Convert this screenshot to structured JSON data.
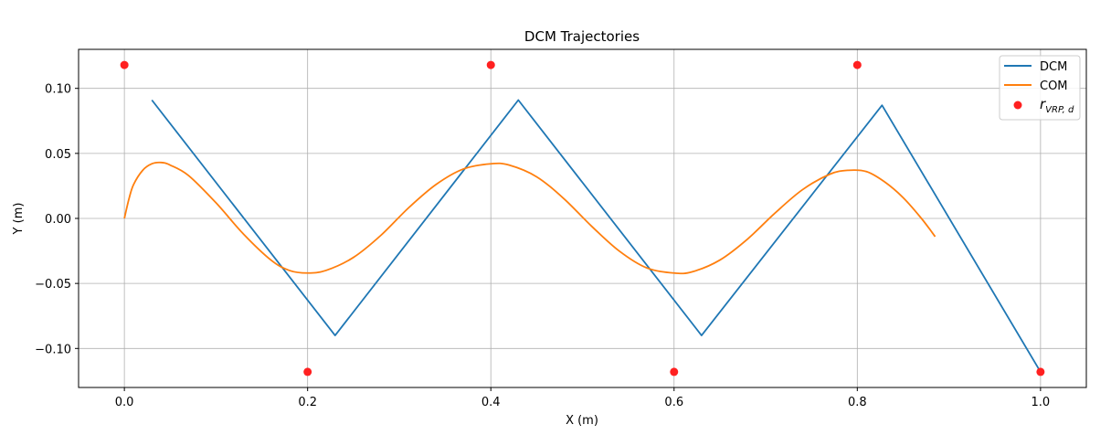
{
  "chart_data": {
    "type": "line",
    "title": "DCM Trajectories",
    "xlabel": "X (m)",
    "ylabel": "Y (m)",
    "xlim": [
      -0.05,
      1.05
    ],
    "ylim": [
      -0.13,
      0.13
    ],
    "xticks": [
      0.0,
      0.2,
      0.4,
      0.6,
      0.8,
      1.0
    ],
    "xtick_labels": [
      "0.0",
      "0.2",
      "0.4",
      "0.6",
      "0.8",
      "1.0"
    ],
    "yticks": [
      -0.1,
      -0.05,
      0.0,
      0.05,
      0.1
    ],
    "ytick_labels": [
      "−0.10",
      "−0.05",
      "0.00",
      "0.05",
      "0.10"
    ],
    "grid": true,
    "legend_position": "top-right",
    "series": [
      {
        "name": "DCM",
        "kind": "line",
        "color": "#1f77b4",
        "x": [
          0.03,
          0.23,
          0.43,
          0.63,
          0.827,
          1.0
        ],
        "y": [
          0.091,
          -0.09,
          0.091,
          -0.09,
          0.087,
          -0.118
        ]
      },
      {
        "name": "COM",
        "kind": "line",
        "color": "#ff7f0e",
        "x": [
          0.0,
          0.005,
          0.01,
          0.02,
          0.03,
          0.04,
          0.05,
          0.07,
          0.1,
          0.13,
          0.16,
          0.18,
          0.2,
          0.22,
          0.25,
          0.28,
          0.31,
          0.34,
          0.37,
          0.4,
          0.42,
          0.45,
          0.48,
          0.51,
          0.54,
          0.57,
          0.6,
          0.62,
          0.65,
          0.68,
          0.71,
          0.74,
          0.77,
          0.79,
          0.81,
          0.83,
          0.85,
          0.87,
          0.885
        ],
        "y": [
          0.0,
          0.015,
          0.026,
          0.037,
          0.042,
          0.043,
          0.041,
          0.033,
          0.012,
          -0.012,
          -0.032,
          -0.04,
          -0.042,
          -0.04,
          -0.03,
          -0.013,
          0.008,
          0.026,
          0.038,
          0.042,
          0.041,
          0.032,
          0.015,
          -0.006,
          -0.025,
          -0.038,
          -0.042,
          -0.041,
          -0.032,
          -0.016,
          0.004,
          0.022,
          0.034,
          0.037,
          0.036,
          0.028,
          0.016,
          0.0,
          -0.014
        ]
      },
      {
        "name": "r_VRP,d",
        "kind": "scatter",
        "color": "#ff2020",
        "x": [
          0.0,
          0.2,
          0.4,
          0.6,
          0.8,
          1.0
        ],
        "y": [
          0.118,
          -0.118,
          0.118,
          -0.118,
          0.118,
          -0.118
        ]
      }
    ],
    "legend": {
      "entries": [
        {
          "label": "DCM",
          "color": "#1f77b4",
          "marker": "line"
        },
        {
          "label": "COM",
          "color": "#ff7f0e",
          "marker": "line"
        },
        {
          "label_main": "r",
          "label_sub": "VRP, d",
          "color": "#ff2020",
          "marker": "dot"
        }
      ]
    }
  }
}
